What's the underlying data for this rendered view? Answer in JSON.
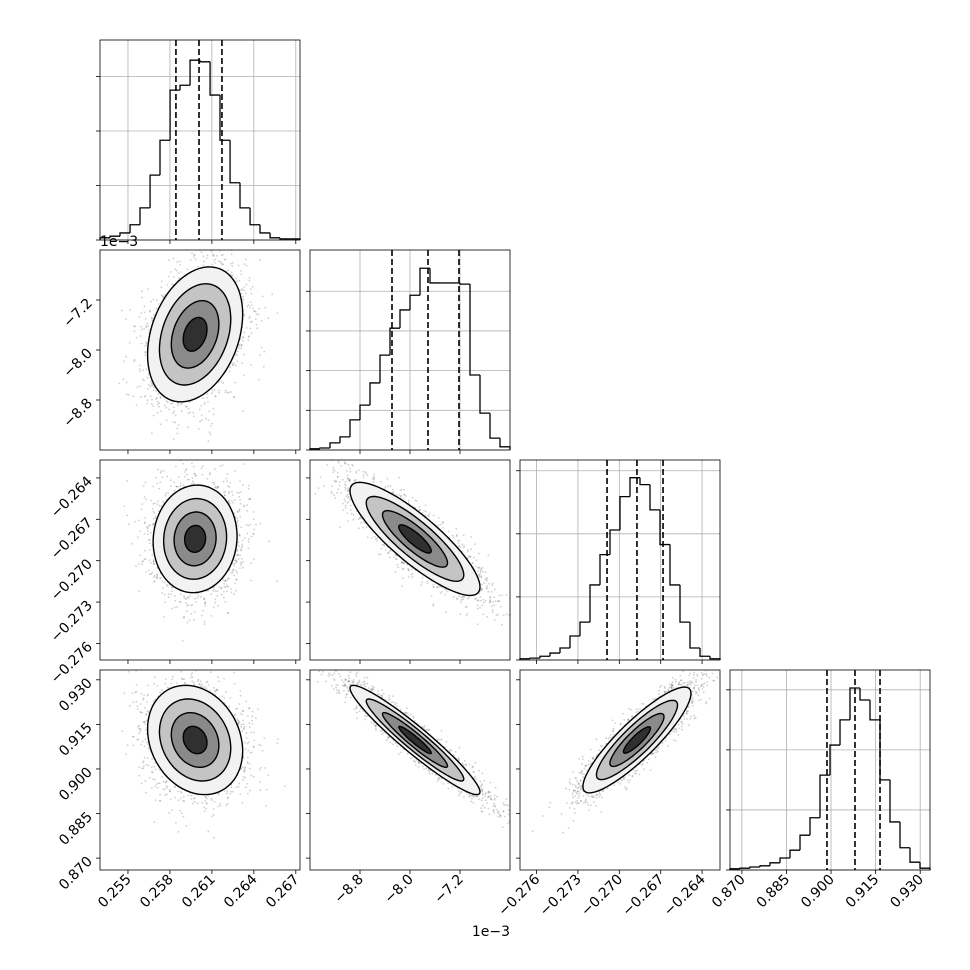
{
  "chart_data": {
    "type": "corner",
    "grid": true,
    "sigma_levels": [
      0.5,
      1,
      1.5,
      2
    ],
    "parameters": [
      {
        "lim": [
          0.253,
          0.2673
        ],
        "ticks": [
          0.255,
          0.258,
          0.261,
          0.264,
          0.267
        ],
        "quantiles": [
          0.25843,
          0.26008,
          0.26172
        ],
        "hist": {
          "bins": [
            0.253,
            0.25372,
            0.25443,
            0.25515,
            0.25586,
            0.25658,
            0.25729,
            0.25801,
            0.25872,
            0.25944,
            0.26015,
            0.26087,
            0.26158,
            0.2623,
            0.26301,
            0.26373,
            0.26444,
            0.26516,
            0.26587,
            0.26659,
            0.2673
          ],
          "values": [
            0.04,
            0.07,
            0.13,
            0.28,
            0.59,
            1.19,
            1.83,
            2.75,
            2.84,
            3.3,
            3.27,
            2.66,
            1.83,
            1.05,
            0.59,
            0.28,
            0.13,
            0.04,
            0.02,
            0.02
          ],
          "ylim": [
            0,
            3.67
          ],
          "yticks": [
            0,
            1,
            2,
            3
          ]
        }
      },
      {
        "lim": [
          -9.6,
          -6.4
        ],
        "offset_label": "1e−3",
        "ticks": [
          {
            "value": -8.8,
            "label": "−8.8"
          },
          {
            "value": -8.0,
            "label": "−8.0"
          },
          {
            "value": -7.2,
            "label": "−7.2"
          }
        ],
        "quantiles": [
          -8.288,
          -7.712,
          -7.216
        ],
        "hist": {
          "bins": [
            -9.6,
            -9.44,
            -9.28,
            -9.12,
            -8.96,
            -8.8,
            -8.64,
            -8.48,
            -8.32,
            -8.16,
            -8.0,
            -7.84,
            -7.68,
            -7.52,
            -7.36,
            -7.2,
            -7.04,
            -6.88,
            -6.72,
            -6.56,
            -6.4
          ],
          "values": [
            0.03,
            0.05,
            0.18,
            0.33,
            0.76,
            1.13,
            1.69,
            2.39,
            3.07,
            3.53,
            3.9,
            4.58,
            4.21,
            4.21,
            4.21,
            4.18,
            1.89,
            0.93,
            0.3,
            0.08
          ],
          "ylim": [
            0,
            5.04
          ],
          "yticks": [
            0,
            1,
            2,
            3,
            4
          ]
        }
      },
      {
        "lim": [
          -0.2772,
          -0.2627
        ],
        "ticks": [
          {
            "value": -0.276,
            "label": "−0.276"
          },
          {
            "value": -0.273,
            "label": "−0.273"
          },
          {
            "value": -0.27,
            "label": "−0.270"
          },
          {
            "value": -0.267,
            "label": "−0.267"
          },
          {
            "value": -0.264,
            "label": "−0.264"
          }
        ],
        "quantiles": [
          -0.27089,
          -0.26872,
          -0.26683
        ],
        "hist": {
          "bins": [
            -0.2772,
            -0.276475,
            -0.27575,
            -0.275025,
            -0.2743,
            -0.273575,
            -0.27285,
            -0.272125,
            -0.2714,
            -0.270675,
            -0.26995,
            -0.269225,
            -0.2685,
            -0.267775,
            -0.26705,
            -0.266325,
            -0.2656,
            -0.264875,
            -0.26415,
            -0.263425,
            -0.2627
          ],
          "values": [
            0.02,
            0.03,
            0.06,
            0.11,
            0.19,
            0.38,
            0.6,
            1.19,
            1.67,
            2.06,
            2.59,
            2.89,
            2.78,
            2.38,
            1.83,
            1.19,
            0.6,
            0.19,
            0.06,
            0.02
          ],
          "ylim": [
            0,
            3.17
          ],
          "yticks": [
            0,
            1,
            2,
            3
          ]
        }
      },
      {
        "lim": [
          0.866,
          0.9333
        ],
        "ticks": [
          {
            "value": 0.87,
            "label": "0.870"
          },
          0.885,
          {
            "value": 0.9,
            "label": "0.900"
          },
          0.915,
          {
            "value": 0.93,
            "label": "0.930"
          }
        ],
        "quantiles": [
          0.89864,
          0.90806,
          0.91648
        ],
        "hist": {
          "bins": [
            0.866,
            0.86937,
            0.87273,
            0.8761,
            0.87946,
            0.88283,
            0.88619,
            0.88956,
            0.89292,
            0.89629,
            0.89965,
            0.90302,
            0.90638,
            0.90975,
            0.91311,
            0.91648,
            0.91984,
            0.92321,
            0.92657,
            0.92994,
            0.9333
          ],
          "values": [
            0.02,
            0.03,
            0.05,
            0.07,
            0.12,
            0.2,
            0.33,
            0.58,
            0.87,
            1.58,
            2.08,
            2.5,
            3.03,
            2.83,
            2.5,
            1.5,
            0.8,
            0.37,
            0.13,
            0.03
          ],
          "ylim": [
            0,
            3.33
          ],
          "yticks": [
            0,
            1,
            2,
            3
          ]
        }
      }
    ],
    "pairs": [
      {
        "x": 0,
        "y": 1,
        "mean": [
          0.2598,
          -7.75
        ],
        "std": [
          0.0017,
          0.54
        ],
        "rho": 0.3
      },
      {
        "x": 0,
        "y": 2,
        "mean": [
          0.2598,
          -0.26842
        ],
        "std": [
          0.0015,
          0.00195
        ],
        "rho": 0.05
      },
      {
        "x": 0,
        "y": 3,
        "mean": [
          0.2598,
          0.90975
        ],
        "std": [
          0.0017,
          0.0092
        ],
        "rho": -0.2
      },
      {
        "x": 1,
        "y": 2,
        "mean": [
          -7.92,
          -0.26842
        ],
        "std": [
          0.52,
          0.00205
        ],
        "rho": -0.85
      },
      {
        "x": 1,
        "y": 3,
        "mean": [
          -7.92,
          0.90975
        ],
        "std": [
          0.52,
          0.0092
        ],
        "rho": -0.95
      },
      {
        "x": 2,
        "y": 3,
        "mean": [
          -0.26872,
          0.90975
        ],
        "std": [
          0.00196,
          0.0089
        ],
        "rho": 0.88
      }
    ]
  }
}
